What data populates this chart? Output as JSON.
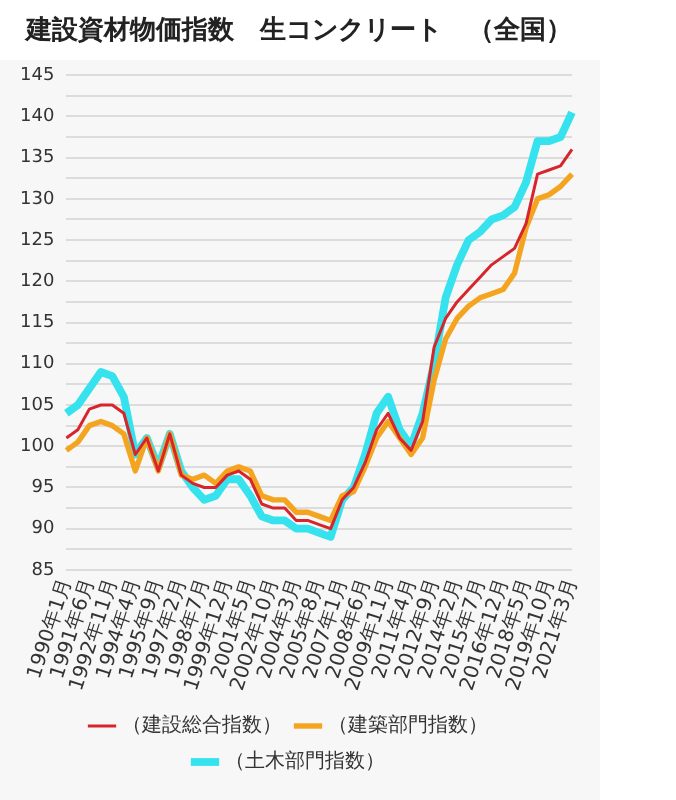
{
  "chart_data": {
    "type": "line",
    "title": "建設資材物価指数　生コンクリート　（全国）",
    "categories": [
      "1990年1月",
      null,
      "1991年6月",
      null,
      "1992年11月",
      null,
      "1994年4月",
      null,
      "1995年9月",
      null,
      "1997年2月",
      null,
      "1998年7月",
      null,
      "1999年12月",
      null,
      "2001年5月",
      null,
      "2002年10月",
      null,
      "2004年3月",
      null,
      "2005年8月",
      null,
      "2007年1月",
      null,
      "2008年6月",
      null,
      "2009年11月",
      null,
      "2011年4月",
      null,
      "2012年9月",
      null,
      "2014年2月",
      null,
      "2015年7月",
      null,
      "2016年12月",
      null,
      "2018年5月",
      null,
      "2019年10月",
      null,
      "2021年3月"
    ],
    "series": [
      {
        "name": "（建設総合指数）",
        "color": "#d7262b",
        "values": [
          101,
          102,
          104.5,
          105,
          105,
          104,
          99,
          101,
          97,
          101.5,
          96.5,
          95.5,
          95,
          95,
          96.5,
          97,
          96,
          93,
          92.5,
          92.5,
          91,
          91,
          90.5,
          90,
          93.5,
          95,
          98,
          102,
          104,
          101,
          99.5,
          103,
          112,
          115.5,
          117.5,
          119,
          120.5,
          122,
          123,
          124,
          127,
          133,
          133.5,
          134,
          136
        ]
      },
      {
        "name": "（建築部門指数）",
        "color": "#f5a41f",
        "values": [
          99.5,
          100.5,
          102.5,
          103,
          102.5,
          101.5,
          97,
          101,
          97,
          101.5,
          96.5,
          96,
          96.5,
          95.5,
          97,
          97.5,
          97,
          94,
          93.5,
          93.5,
          92,
          92,
          91.5,
          91,
          94,
          94.5,
          97.5,
          101,
          103,
          101,
          99,
          101,
          108,
          113,
          115.5,
          117,
          118,
          118.5,
          119,
          121,
          126.5,
          130,
          130.5,
          131.5,
          133
        ]
      },
      {
        "name": "（土木部門指数）",
        "color": "#35e2ee",
        "values": [
          104,
          105,
          107,
          109,
          108.5,
          106,
          99,
          101,
          97.5,
          101.5,
          97,
          95,
          93.5,
          94,
          96,
          96,
          94,
          91.5,
          91,
          91,
          90,
          90,
          89.5,
          89,
          93.5,
          95,
          99,
          104,
          106,
          102,
          100,
          104,
          110,
          118,
          122,
          125,
          126,
          127.5,
          128,
          129,
          132,
          137,
          137,
          137.5,
          140.5
        ]
      }
    ],
    "ylim": [
      85,
      145
    ],
    "yticks": [
      85,
      {
        "value": 87.5,
        "label": null
      },
      90,
      {
        "value": 92.5,
        "label": null
      },
      95,
      {
        "value": 97.5,
        "label": null
      },
      100,
      {
        "value": 102.5,
        "label": null
      },
      105,
      {
        "value": 107.5,
        "label": null
      },
      110,
      {
        "value": 112.5,
        "label": null
      },
      115,
      {
        "value": 117.5,
        "label": null
      },
      120,
      {
        "value": 122.5,
        "label": null
      },
      125,
      {
        "value": 127.5,
        "label": null
      },
      130,
      {
        "value": 132.5,
        "label": null
      },
      135,
      {
        "value": 137.5,
        "label": null
      },
      140,
      {
        "value": 142.5,
        "label": null
      },
      145
    ],
    "grid": "y",
    "legend": "bottom",
    "line_style": "solid"
  }
}
